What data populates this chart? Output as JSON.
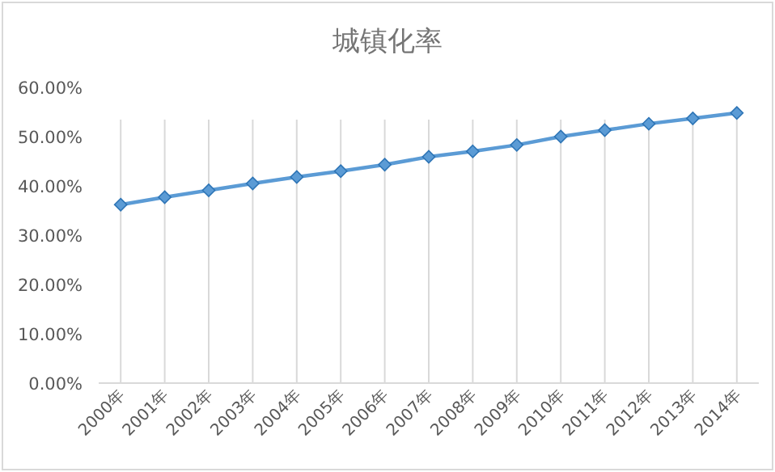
{
  "chart_data": {
    "type": "line",
    "title": "城镇化率",
    "categories": [
      "2000年",
      "2001年",
      "2002年",
      "2003年",
      "2004年",
      "2005年",
      "2006年",
      "2007年",
      "2008年",
      "2009年",
      "2010年",
      "2011年",
      "2012年",
      "2013年",
      "2014年"
    ],
    "values": [
      36.2,
      37.7,
      39.1,
      40.5,
      41.8,
      43.0,
      44.3,
      45.9,
      47.0,
      48.3,
      50.0,
      51.3,
      52.6,
      53.7,
      54.8
    ],
    "color": "#5b9bd5",
    "marker": "diamond",
    "grid": "x",
    "ylim": [
      0,
      60
    ],
    "yticks": [
      {
        "value": 0,
        "label": "0.00%"
      },
      {
        "value": 10,
        "label": "10.00%"
      },
      {
        "value": 20,
        "label": "20.00%"
      },
      {
        "value": 30,
        "label": "30.00%"
      },
      {
        "value": 40,
        "label": "40.00%"
      },
      {
        "value": 50,
        "label": "50.00%"
      },
      {
        "value": 60,
        "label": "60.00%"
      }
    ]
  }
}
